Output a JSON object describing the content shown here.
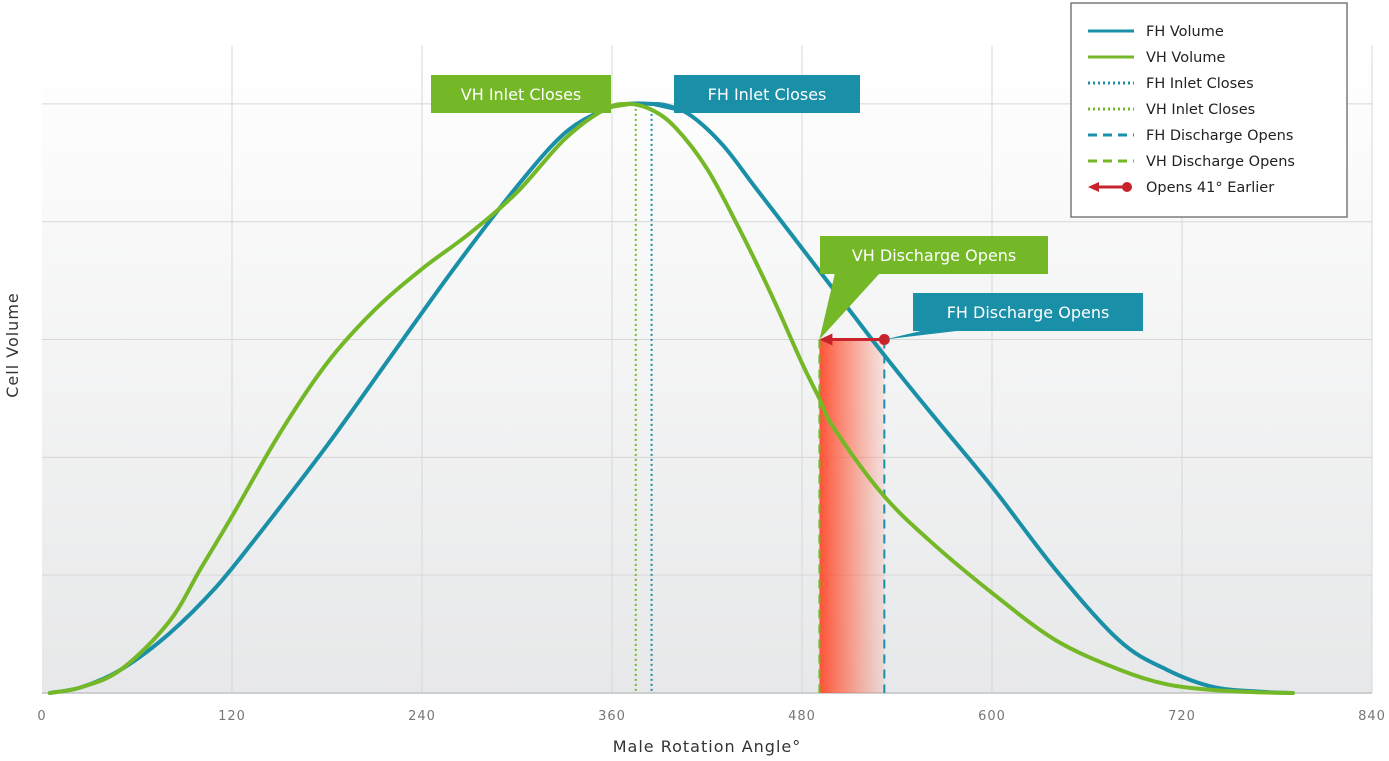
{
  "chart_data": {
    "type": "line",
    "xlabel": "Male Rotation Angle°",
    "ylabel": "Cell Volume",
    "xlim": [
      0,
      840
    ],
    "ylim": [
      0,
      1.1
    ],
    "xticks": [
      "0",
      "120",
      "240",
      "360",
      "480",
      "600",
      "720",
      "840"
    ],
    "y_tick_labels_shown": false,
    "grid": true,
    "legend_position": "top-right",
    "colors": {
      "fh": "#1a8fa8",
      "vh": "#74b828",
      "arrow": "#c8232c",
      "shade": "#ff5a3c"
    },
    "series": [
      {
        "name": "FH Volume",
        "style": "solid",
        "color": "#1a8fa8",
        "x": [
          5,
          25,
          50,
          80,
          110,
          140,
          180,
          220,
          260,
          300,
          330,
          355,
          370,
          385,
          395,
          410,
          430,
          450,
          470,
          490,
          510,
          530,
          560,
          600,
          640,
          680,
          710,
          740,
          770,
          790
        ],
        "y": [
          0.0,
          0.01,
          0.04,
          0.1,
          0.18,
          0.28,
          0.42,
          0.57,
          0.72,
          0.86,
          0.95,
          0.99,
          1.0,
          1.0,
          0.997,
          0.98,
          0.93,
          0.86,
          0.79,
          0.72,
          0.65,
          0.58,
          0.48,
          0.35,
          0.21,
          0.09,
          0.04,
          0.01,
          0.002,
          0.0
        ]
      },
      {
        "name": "VH Volume",
        "style": "solid",
        "color": "#74b828",
        "x": [
          5,
          25,
          50,
          80,
          100,
          120,
          150,
          180,
          210,
          240,
          270,
          300,
          330,
          355,
          370,
          385,
          400,
          420,
          440,
          460,
          480,
          491,
          500,
          530,
          560,
          600,
          640,
          680,
          710,
          740,
          770,
          790
        ],
        "y": [
          0.0,
          0.01,
          0.04,
          0.12,
          0.21,
          0.3,
          0.44,
          0.56,
          0.65,
          0.72,
          0.78,
          0.85,
          0.94,
          0.99,
          1.0,
          0.99,
          0.96,
          0.89,
          0.79,
          0.68,
          0.56,
          0.5,
          0.45,
          0.34,
          0.26,
          0.17,
          0.09,
          0.04,
          0.015,
          0.005,
          0.001,
          0.0
        ]
      }
    ],
    "vertical_markers": [
      {
        "name": "FH Inlet Closes",
        "x": 385,
        "style": "dotted",
        "color": "#1a8fa8"
      },
      {
        "name": "VH Inlet Closes",
        "x": 375,
        "style": "dotted",
        "color": "#74b828"
      },
      {
        "name": "FH Discharge Opens",
        "x": 532,
        "style": "dashed",
        "color": "#1a8fa8"
      },
      {
        "name": "VH Discharge Opens",
        "x": 491,
        "style": "dashed",
        "color": "#74b828"
      }
    ],
    "arrow": {
      "name": "Opens 41° Earlier",
      "from_x": 532,
      "to_x": 491,
      "y": 0.6
    },
    "shaded_region": {
      "from_x": 491,
      "to_x": 532
    },
    "callouts": [
      {
        "id": "vh-inlet",
        "text": "VH Inlet Closes",
        "color": "#74b828",
        "point_x": 380,
        "point_y": 1.0
      },
      {
        "id": "fh-inlet",
        "text": "FH Inlet Closes",
        "color": "#1a8fa8",
        "point_x": 380,
        "point_y": 1.0
      },
      {
        "id": "vh-discharge",
        "text": "VH Discharge Opens",
        "color": "#74b828",
        "point_x": 491,
        "point_y": 0.6
      },
      {
        "id": "fh-discharge",
        "text": "FH Discharge Opens",
        "color": "#1a8fa8",
        "point_x": 532,
        "point_y": 0.6
      }
    ],
    "legend": [
      {
        "label": "FH Volume",
        "style": "solid",
        "color": "#1a8fa8"
      },
      {
        "label": "VH Volume",
        "style": "solid",
        "color": "#74b828"
      },
      {
        "label": "FH Inlet Closes",
        "style": "dotted",
        "color": "#1a8fa8"
      },
      {
        "label": "VH Inlet Closes",
        "style": "dotted",
        "color": "#74b828"
      },
      {
        "label": "FH Discharge Opens",
        "style": "dashed",
        "color": "#1a8fa8"
      },
      {
        "label": "VH Discharge Opens",
        "style": "dashed",
        "color": "#74b828"
      },
      {
        "label": "Opens 41° Earlier",
        "style": "arrow",
        "color": "#c8232c"
      }
    ]
  }
}
